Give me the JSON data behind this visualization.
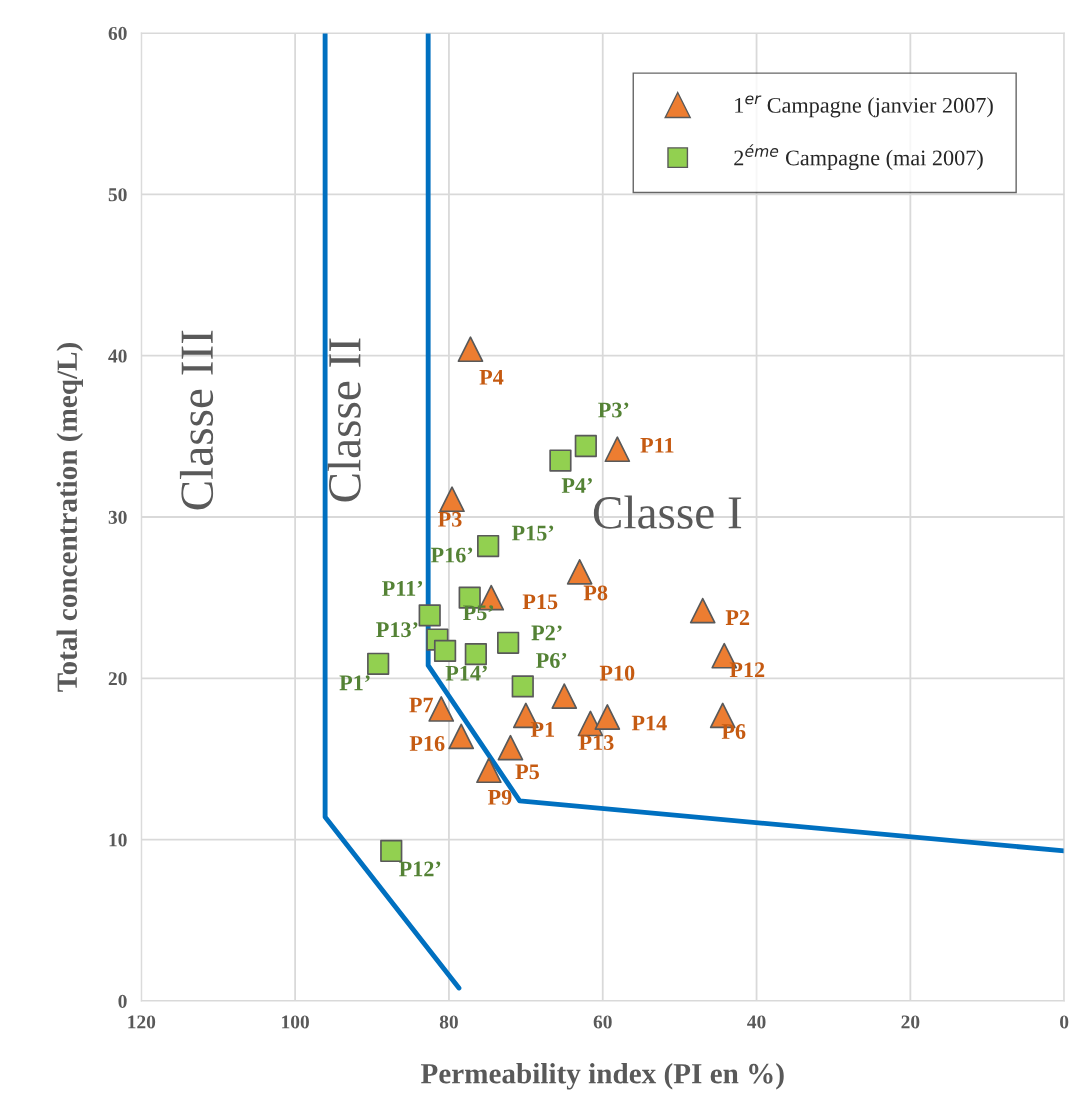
{
  "chart_data": {
    "type": "scatter",
    "xlabel": "Permeability index (PI en %)",
    "ylabel": "Total concentration (meq/L)",
    "xlim": [
      120,
      0
    ],
    "xticks": [
      120,
      100,
      80,
      60,
      40,
      20,
      0
    ],
    "ylim": [
      0,
      60
    ],
    "yticks": [
      0,
      10,
      20,
      30,
      40,
      50,
      60
    ],
    "grid": true,
    "legend": "top right",
    "series": [
      {
        "name": "1$^{er}$ Campagne (janvier 2007)",
        "marker": "triangle",
        "color": "#ed7d31",
        "x": [
          70.0,
          47.0,
          79.6,
          77.2,
          72.0,
          44.4,
          81.0,
          63.0,
          74.8,
          65.0,
          58.1,
          44.2,
          61.6,
          59.4,
          74.5,
          78.4
        ],
        "values": [
          17.7,
          24.2,
          31.1,
          40.4,
          15.7,
          17.7,
          18.1,
          26.6,
          14.3,
          18.9,
          34.2,
          21.4,
          17.2,
          17.6,
          25.0,
          16.4
        ]
      },
      {
        "name": "2$^{éme}$ Campagne (mai 2007)",
        "marker": "square",
        "color": "#92d050",
        "x": [
          89.2,
          72.3,
          62.2,
          65.5,
          77.3,
          70.4,
          82.5,
          87.5,
          81.5,
          76.5,
          74.9,
          80.5
        ],
        "values": [
          20.9,
          22.2,
          34.4,
          33.5,
          25.0,
          19.5,
          23.9,
          9.3,
          22.4,
          21.5,
          28.2,
          21.7
        ]
      },
      {
        "type": "line",
        "color": "#0070c0",
        "x": [
          96.1,
          96.1,
          78.7
        ],
        "values": [
          60,
          11.4,
          0.8
        ]
      },
      {
        "type": "line",
        "color": "#0070c0",
        "x": [
          82.7,
          82.7,
          70.8,
          0
        ],
        "values": [
          60,
          20.8,
          12.4,
          9.3
        ]
      }
    ],
    "annotations": [
      {
        "text": "P1",
        "x": 70.0,
        "y": 17.7
      },
      {
        "text": "P2",
        "x": 47.0,
        "y": 24.2
      },
      {
        "text": "P3",
        "x": 79.6,
        "y": 31.1
      },
      {
        "text": "P4",
        "x": 77.2,
        "y": 40.4
      },
      {
        "text": "P5",
        "x": 72.0,
        "y": 15.7
      },
      {
        "text": "P6",
        "x": 44.4,
        "y": 17.7
      },
      {
        "text": "P7",
        "x": 81.0,
        "y": 18.1
      },
      {
        "text": "P8",
        "x": 63.0,
        "y": 26.6
      },
      {
        "text": "P9",
        "x": 74.8,
        "y": 14.3
      },
      {
        "text": "P10",
        "x": 65.0,
        "y": 18.9
      },
      {
        "text": "P11",
        "x": 58.1,
        "y": 34.2
      },
      {
        "text": "P12",
        "x": 44.2,
        "y": 21.4
      },
      {
        "text": "P13",
        "x": 61.6,
        "y": 17.2
      },
      {
        "text": "P14",
        "x": 59.4,
        "y": 17.6
      },
      {
        "text": "P15",
        "x": 74.5,
        "y": 25.0
      },
      {
        "text": "P16",
        "x": 78.4,
        "y": 16.4
      },
      {
        "text": "P1’",
        "x": 89.2,
        "y": 20.9
      },
      {
        "text": "P2’",
        "x": 72.3,
        "y": 22.2
      },
      {
        "text": "P3’",
        "x": 62.2,
        "y": 34.4
      },
      {
        "text": "P4’",
        "x": 65.5,
        "y": 33.5
      },
      {
        "text": "P5’",
        "x": 77.3,
        "y": 25.0
      },
      {
        "text": "P6’",
        "x": 70.4,
        "y": 19.5
      },
      {
        "text": "P11’",
        "x": 82.5,
        "y": 23.9
      },
      {
        "text": "P12’",
        "x": 87.5,
        "y": 9.3
      },
      {
        "text": "P13’",
        "x": 81.5,
        "y": 22.4
      },
      {
        "text": "P14’",
        "x": 76.5,
        "y": 21.5
      },
      {
        "text": "P15’",
        "x": 74.9,
        "y": 28.2
      },
      {
        "text": "P16’",
        "x": 74.9,
        "y": 28.2
      },
      "Classe III",
      "Classe II",
      "Classe I"
    ]
  }
}
